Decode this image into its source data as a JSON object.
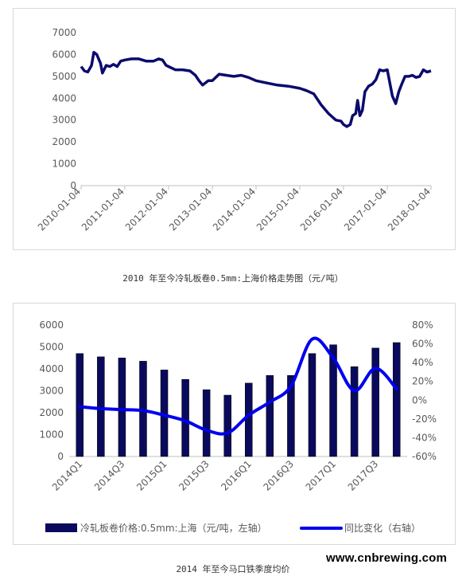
{
  "colors": {
    "line1": "#0b0b6e",
    "bars": "#0a0a5c",
    "yoy_line": "#0000ee",
    "axis": "#bfbfbf",
    "text": "#595959"
  },
  "captions": {
    "chart1": "2010 年至今冷轧板卷0.5mm:上海价格走势图（元/吨）",
    "chart2": "2014 年至今马口铁季度均价"
  },
  "watermark": "www.cnbrewing.com",
  "chart_data": [
    {
      "type": "line",
      "title": "",
      "ylim": [
        0,
        7000
      ],
      "yticks": [
        0,
        1000,
        2000,
        3000,
        4000,
        5000,
        6000,
        7000
      ],
      "xticks": [
        "2010-01-04",
        "2011-01-04",
        "2012-01-04",
        "2013-01-04",
        "2014-01-04",
        "2015-01-04",
        "2016-01-04",
        "2017-01-04",
        "2018-01-04"
      ],
      "grid": false,
      "series": [
        {
          "x": [
            "2010-01-04",
            "2010-02-01",
            "2010-03-01",
            "2010-04-01",
            "2010-04-20",
            "2010-05-15",
            "2010-06-15",
            "2010-07-01",
            "2010-08-01",
            "2010-09-01",
            "2010-10-01",
            "2010-11-01",
            "2010-12-01",
            "2011-01-04",
            "2011-03-01",
            "2011-05-01",
            "2011-07-01",
            "2011-09-01",
            "2011-10-15",
            "2011-11-15",
            "2011-12-15",
            "2012-01-04",
            "2012-03-01",
            "2012-05-01",
            "2012-07-01",
            "2012-08-15",
            "2012-09-15",
            "2012-10-15",
            "2012-12-01",
            "2013-01-04",
            "2013-03-01",
            "2013-05-01",
            "2013-07-01",
            "2013-09-01",
            "2013-11-01",
            "2014-01-04",
            "2014-04-01",
            "2014-07-01",
            "2014-10-01",
            "2015-01-04",
            "2015-03-01",
            "2015-05-01",
            "2015-07-01",
            "2015-09-01",
            "2015-11-01",
            "2015-12-15",
            "2016-01-04",
            "2016-02-01",
            "2016-03-01",
            "2016-03-20",
            "2016-04-15",
            "2016-05-01",
            "2016-05-20",
            "2016-06-10",
            "2016-07-01",
            "2016-08-01",
            "2016-09-01",
            "2016-10-01",
            "2016-11-01",
            "2016-12-01",
            "2017-01-04",
            "2017-02-15",
            "2017-03-15",
            "2017-04-10",
            "2017-05-01",
            "2017-06-01",
            "2017-07-01",
            "2017-08-01",
            "2017-09-01",
            "2017-10-01",
            "2017-11-01",
            "2017-12-01",
            "2018-01-04"
          ],
          "y": [
            5450,
            5250,
            5200,
            5500,
            6100,
            6000,
            5600,
            5150,
            5500,
            5450,
            5550,
            5450,
            5700,
            5750,
            5800,
            5800,
            5700,
            5700,
            5800,
            5750,
            5500,
            5450,
            5300,
            5300,
            5250,
            5050,
            4800,
            4600,
            4800,
            4800,
            5100,
            5050,
            5000,
            5050,
            4950,
            4800,
            4700,
            4600,
            4550,
            4450,
            4350,
            4200,
            3700,
            3300,
            3000,
            2950,
            2800,
            2700,
            2800,
            3200,
            3300,
            3900,
            3200,
            3450,
            4300,
            4550,
            4650,
            4850,
            5300,
            5250,
            5300,
            4100,
            3750,
            4300,
            4600,
            5000,
            5000,
            5050,
            4950,
            5000,
            5300,
            5200,
            5250
          ]
        }
      ]
    },
    {
      "type": "bar",
      "title": "",
      "categories": [
        "2014Q1",
        "2014Q2",
        "2014Q3",
        "2014Q4",
        "2015Q1",
        "2015Q2",
        "2015Q3",
        "2015Q4",
        "2016Q1",
        "2016Q2",
        "2016Q3",
        "2016Q4",
        "2017Q1",
        "2017Q2",
        "2017Q3",
        "2017Q4"
      ],
      "xtick_labels": [
        "2014Q1",
        "2014Q3",
        "2015Q1",
        "2015Q3",
        "2016Q1",
        "2016Q3",
        "2017Q1",
        "2017Q3"
      ],
      "ylim": [
        0,
        6000
      ],
      "yticks": [
        0,
        1000,
        2000,
        3000,
        4000,
        5000,
        6000
      ],
      "y2lim": [
        -60,
        80
      ],
      "y2ticks": [
        -60,
        -40,
        -20,
        0,
        20,
        40,
        60,
        80
      ],
      "y2unit": "%",
      "grid": false,
      "legend_position": "bottom",
      "series": [
        {
          "name": "冷轧板卷价格:0.5mm:上海（元/吨，左轴）",
          "type": "bar",
          "axis": "left",
          "values": [
            4700,
            4550,
            4500,
            4350,
            3950,
            3520,
            3050,
            2800,
            3350,
            3700,
            3700,
            4700,
            5100,
            4100,
            4950,
            5200
          ]
        },
        {
          "name": "同比变化（右轴）",
          "type": "line",
          "axis": "right",
          "values": [
            -7,
            -9,
            -10,
            -11,
            -16,
            -22,
            -32,
            -35,
            -16,
            -2,
            15,
            65,
            45,
            10,
            34,
            12
          ]
        }
      ]
    }
  ]
}
